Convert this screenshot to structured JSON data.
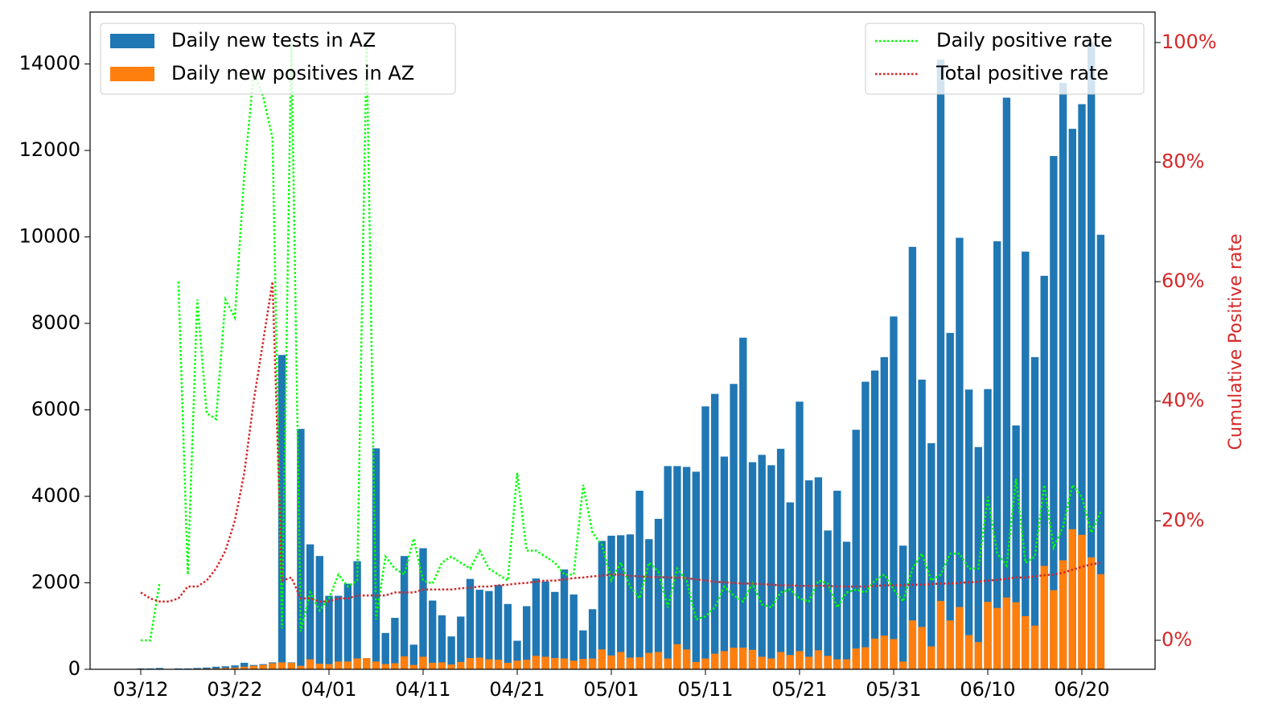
{
  "chart_data": {
    "type": "bar",
    "categories": [
      "03/12",
      null,
      null,
      null,
      null,
      null,
      null,
      null,
      null,
      null,
      "03/22",
      null,
      null,
      null,
      null,
      null,
      null,
      null,
      null,
      null,
      "04/01",
      null,
      null,
      null,
      null,
      null,
      null,
      null,
      null,
      null,
      "04/11",
      null,
      null,
      null,
      null,
      null,
      null,
      null,
      null,
      null,
      "04/21",
      null,
      null,
      null,
      null,
      null,
      null,
      null,
      null,
      null,
      "05/01",
      null,
      null,
      null,
      null,
      null,
      null,
      null,
      null,
      null,
      "05/11",
      null,
      null,
      null,
      null,
      null,
      null,
      null,
      null,
      null,
      "05/21",
      null,
      null,
      null,
      null,
      null,
      null,
      null,
      null,
      null,
      "05/31",
      null,
      null,
      null,
      null,
      null,
      null,
      null,
      null,
      null,
      "06/10",
      null,
      null,
      null,
      null,
      null,
      null,
      null,
      null,
      null,
      "06/20",
      null,
      null
    ],
    "series": [
      {
        "name": "Daily new tests in AZ",
        "type": "bar",
        "color": "#1f77b4",
        "values": [
          20,
          20,
          30,
          10,
          20,
          20,
          30,
          40,
          60,
          70,
          90,
          150,
          100,
          120,
          160,
          7270,
          160,
          5560,
          2890,
          2620,
          1700,
          1700,
          1980,
          2500,
          260,
          5110,
          840,
          1190,
          2620,
          570,
          2800,
          1590,
          1250,
          760,
          1220,
          2090,
          1840,
          1810,
          1950,
          1510,
          660,
          1460,
          2100,
          2030,
          1790,
          2310,
          1730,
          900,
          1390,
          2970,
          3090,
          3100,
          3120,
          4130,
          3010,
          3480,
          4700,
          4700,
          4680,
          4570,
          6080,
          6370,
          4920,
          6600,
          7670,
          4790,
          4960,
          4720,
          5100,
          3860,
          6190,
          4370,
          4440,
          3210,
          4130,
          2950,
          5540,
          6650,
          6910,
          7220,
          8160,
          2860,
          9770,
          6700,
          5230,
          14100,
          7780,
          9980,
          6470,
          5140,
          6480,
          9900,
          13220,
          5640,
          9660,
          7220,
          9100,
          11870,
          13560,
          12500,
          13070,
          14500,
          10050
        ]
      },
      {
        "name": "Daily new positives in AZ",
        "type": "bar",
        "color": "#ff7f0e",
        "values": [
          0,
          0,
          0,
          3,
          5,
          5,
          10,
          15,
          20,
          30,
          40,
          60,
          80,
          100,
          140,
          160,
          150,
          80,
          230,
          130,
          120,
          180,
          180,
          250,
          260,
          180,
          120,
          140,
          300,
          100,
          290,
          150,
          160,
          110,
          170,
          260,
          270,
          230,
          220,
          150,
          200,
          220,
          310,
          290,
          260,
          250,
          200,
          240,
          250,
          460,
          320,
          400,
          270,
          280,
          380,
          400,
          250,
          580,
          460,
          170,
          250,
          360,
          420,
          500,
          500,
          450,
          290,
          250,
          400,
          330,
          420,
          290,
          440,
          310,
          230,
          230,
          480,
          510,
          710,
          780,
          700,
          180,
          1130,
          980,
          530,
          1580,
          1130,
          1440,
          790,
          630,
          1560,
          1420,
          1660,
          1550,
          1230,
          1010,
          2390,
          1830,
          2520,
          3240,
          3110,
          2590,
          2200
        ]
      },
      {
        "name": "Daily positive rate",
        "type": "line",
        "axis": "y2",
        "linestyle": "dotted",
        "color": "#00ff00",
        "values": [
          0,
          0,
          9.6,
          null,
          60,
          11,
          57,
          38,
          37,
          57,
          54,
          78,
          95,
          91,
          84,
          2,
          100,
          1.5,
          8,
          5,
          7,
          11,
          9,
          10,
          100,
          3.5,
          14,
          12,
          11,
          17,
          10,
          9.5,
          13,
          14,
          13,
          12,
          15,
          12,
          11,
          10,
          28,
          15,
          15,
          14,
          13,
          11,
          11,
          26,
          18,
          16,
          10,
          13,
          9,
          7,
          13,
          11.5,
          5.5,
          12,
          10,
          3.5,
          4,
          5.5,
          9,
          7.5,
          6.5,
          9.5,
          6,
          5.5,
          8,
          8.5,
          7,
          6.5,
          10,
          9.5,
          5.5,
          8,
          8.5,
          8,
          10,
          11,
          8.5,
          6.5,
          12,
          14.5,
          10,
          11,
          14.5,
          14.5,
          12,
          12,
          24,
          14.5,
          12.5,
          27,
          13,
          14,
          26,
          15.5,
          19,
          26,
          24,
          18,
          21.5
        ]
      },
      {
        "name": "Total positive rate",
        "type": "line",
        "axis": "y2",
        "linestyle": "dotted",
        "color": "#d62728",
        "values": [
          8,
          7,
          6.5,
          6.5,
          7,
          9,
          9,
          10,
          12,
          15,
          20,
          28,
          40,
          50,
          60,
          10,
          10.5,
          7,
          7,
          6.5,
          6.5,
          7,
          7,
          7.5,
          7.5,
          7.5,
          7.5,
          8,
          8,
          8,
          8.5,
          8.5,
          8.5,
          8.5,
          8.7,
          8.8,
          9,
          9,
          9.2,
          9.3,
          9.5,
          9.6,
          9.8,
          10,
          10,
          10.2,
          10.4,
          10.5,
          10.7,
          10.8,
          11,
          11,
          10.8,
          10.7,
          10.6,
          10.6,
          10.5,
          10.5,
          10.4,
          10.2,
          10,
          9.8,
          9.7,
          9.6,
          9.5,
          9.5,
          9.4,
          9.3,
          9.2,
          9.2,
          9.1,
          9.1,
          9.1,
          9.1,
          9,
          9,
          9,
          9,
          9.1,
          9.2,
          9.2,
          9.2,
          9.3,
          9.3,
          9.4,
          9.5,
          9.5,
          9.6,
          9.7,
          9.8,
          10,
          10.1,
          10.3,
          10.5,
          10.5,
          10.7,
          10.9,
          11,
          11.3,
          11.8,
          12.3,
          12.7,
          13
        ]
      }
    ],
    "ylim": [
      0,
      15200
    ],
    "yticks": [
      0,
      2000,
      4000,
      6000,
      8000,
      10000,
      12000,
      14000
    ],
    "y2lim": [
      -4.85,
      105.1
    ],
    "y2label": "Cumulative Positive rate",
    "y2color": "#d62728",
    "y2ticks": [
      {
        "value": 0,
        "label": "0%"
      },
      {
        "value": 20,
        "label": "20%"
      },
      {
        "value": 40,
        "label": "40%"
      },
      {
        "value": 60,
        "label": "60%"
      },
      {
        "value": 80,
        "label": "80%"
      },
      {
        "value": 100,
        "label": "100%"
      }
    ],
    "legend": "upper left",
    "legend2": "upper right"
  }
}
